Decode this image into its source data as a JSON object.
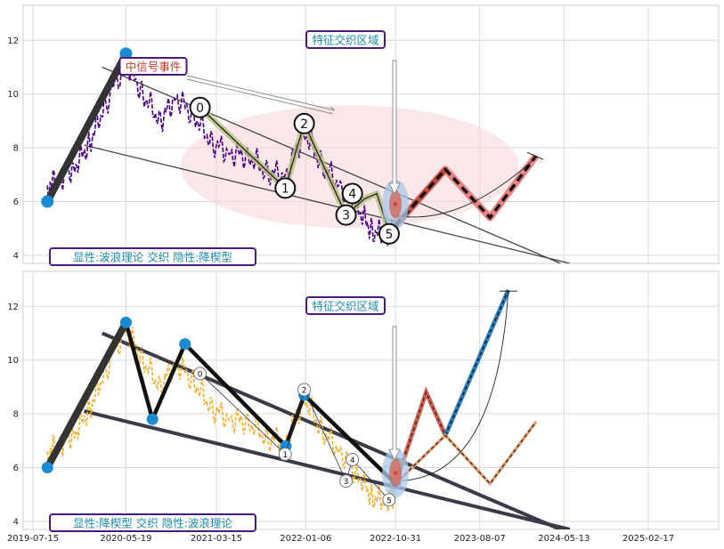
{
  "chart_data": [
    {
      "type": "line",
      "panel": "top",
      "ylim": [
        3.7,
        13.3
      ],
      "yticks": [
        "4",
        "6",
        "8",
        "10",
        "12"
      ],
      "grid": true,
      "series": [
        {
          "role": "price",
          "color": "#4b0082",
          "x": [
            "2019-09-01",
            "2019-10-15",
            "2019-12-01",
            "2020-01-20",
            "2020-03-10",
            "2020-05-19",
            "2020-07-15",
            "2020-09-10",
            "2020-11-01",
            "2021-01-01",
            "2021-03-01",
            "2021-05-01",
            "2021-07-01",
            "2021-09-01",
            "2021-11-01",
            "2022-01-01",
            "2022-03-01",
            "2022-05-01",
            "2022-07-01",
            "2022-08-15",
            "2022-10-01",
            "2022-10-31"
          ],
          "y": [
            6.6,
            6.9,
            7.3,
            8.2,
            9.6,
            11.2,
            10.0,
            9.0,
            9.9,
            9.2,
            8.2,
            7.8,
            7.7,
            7.1,
            7.0,
            8.6,
            7.4,
            6.6,
            5.7,
            4.9,
            4.8,
            5.1
          ]
        },
        {
          "role": "wave-path",
          "color": "#b8c080",
          "x": [
            "2021-01-20",
            "2021-10-30",
            "2022-01-01",
            "2022-05-20",
            "2022-07-20",
            "2022-08-30",
            "2022-10-10"
          ],
          "y": [
            9.5,
            6.5,
            8.9,
            5.5,
            6.1,
            6.3,
            4.9
          ]
        },
        {
          "role": "projection",
          "color": "#e06060",
          "x": [
            "2022-10-31",
            "2023-04-15",
            "2023-09-10",
            "2024-02-10"
          ],
          "y": [
            5.1,
            7.2,
            5.4,
            7.7
          ]
        }
      ],
      "pivots": [
        {
          "x": "2019-09-01",
          "y": 6.0
        },
        {
          "x": "2020-05-19",
          "y": 11.5
        }
      ],
      "wave_labels": [
        {
          "text": "0",
          "x": "2021-01-20",
          "y": 9.5
        },
        {
          "text": "1",
          "x": "2021-10-30",
          "y": 6.5
        },
        {
          "text": "2",
          "x": "2022-01-01",
          "y": 8.9
        },
        {
          "text": "3",
          "x": "2022-05-20",
          "y": 5.5
        },
        {
          "text": "4",
          "x": "2022-06-10",
          "y": 6.3
        },
        {
          "text": "5",
          "x": "2022-10-10",
          "y": 4.8
        }
      ],
      "annotations": {
        "feature_zone": "特征交织区域",
        "signal_event": "中信号事件",
        "legend": "显性:波浪理论 交织 隐性:降楔型"
      }
    },
    {
      "type": "line",
      "panel": "bottom",
      "ylim": [
        3.7,
        13.3
      ],
      "yticks": [
        "4",
        "6",
        "8",
        "10",
        "12"
      ],
      "xticks": [
        "2019-07-15",
        "2020-05-19",
        "2021-03-15",
        "2022-01-06",
        "2022-10-31",
        "2023-08-07",
        "2024-05-13",
        "2025-02-17"
      ],
      "grid": true,
      "series": [
        {
          "role": "price",
          "color": "#f0b030",
          "x": [
            "2019-09-01",
            "2019-10-15",
            "2019-12-01",
            "2020-01-20",
            "2020-03-10",
            "2020-05-19",
            "2020-07-15",
            "2020-09-10",
            "2020-11-01",
            "2021-01-01",
            "2021-03-01",
            "2021-05-01",
            "2021-07-01",
            "2021-09-01",
            "2021-11-01",
            "2022-01-01",
            "2022-03-01",
            "2022-05-01",
            "2022-07-01",
            "2022-08-15",
            "2022-10-01",
            "2022-10-31"
          ],
          "y": [
            6.6,
            6.9,
            7.3,
            8.2,
            9.6,
            11.2,
            10.0,
            9.0,
            9.9,
            9.2,
            8.2,
            7.8,
            7.7,
            7.1,
            7.0,
            8.6,
            7.4,
            6.6,
            5.7,
            4.9,
            4.8,
            5.1
          ]
        },
        {
          "role": "wedge-zigzag",
          "color": "#111111",
          "x": [
            "2019-09-01",
            "2020-05-19",
            "2020-08-15",
            "2020-12-01",
            "2021-11-01",
            "2022-01-01",
            "2022-10-31"
          ],
          "y": [
            6.0,
            11.4,
            7.8,
            10.6,
            6.8,
            8.7,
            5.4
          ]
        },
        {
          "role": "projection-red",
          "color": "#d06050",
          "x": [
            "2022-10-31",
            "2023-02-10",
            "2023-04-15"
          ],
          "y": [
            5.4,
            8.8,
            7.2
          ]
        },
        {
          "role": "projection-blue",
          "color": "#2a80c0",
          "x": [
            "2023-04-15",
            "2023-11-10"
          ],
          "y": [
            7.2,
            12.6
          ]
        },
        {
          "role": "projection-orange",
          "color": "#e8a070",
          "x": [
            "2022-10-31",
            "2023-04-15",
            "2023-09-10",
            "2024-02-10"
          ],
          "y": [
            5.4,
            7.2,
            5.4,
            7.7
          ]
        }
      ],
      "wave_labels": [
        {
          "text": "0",
          "x": "2021-01-20",
          "y": 9.5
        },
        {
          "text": "1",
          "x": "2021-10-30",
          "y": 6.5
        },
        {
          "text": "2",
          "x": "2022-01-01",
          "y": 8.9
        },
        {
          "text": "3",
          "x": "2022-05-20",
          "y": 5.5
        },
        {
          "text": "4",
          "x": "2022-06-10",
          "y": 6.3
        },
        {
          "text": "5",
          "x": "2022-10-10",
          "y": 4.8
        }
      ],
      "annotations": {
        "feature_zone": "特征交织区域",
        "legend": "显性:降楔型 交织 隐性:波浪理论"
      }
    }
  ]
}
